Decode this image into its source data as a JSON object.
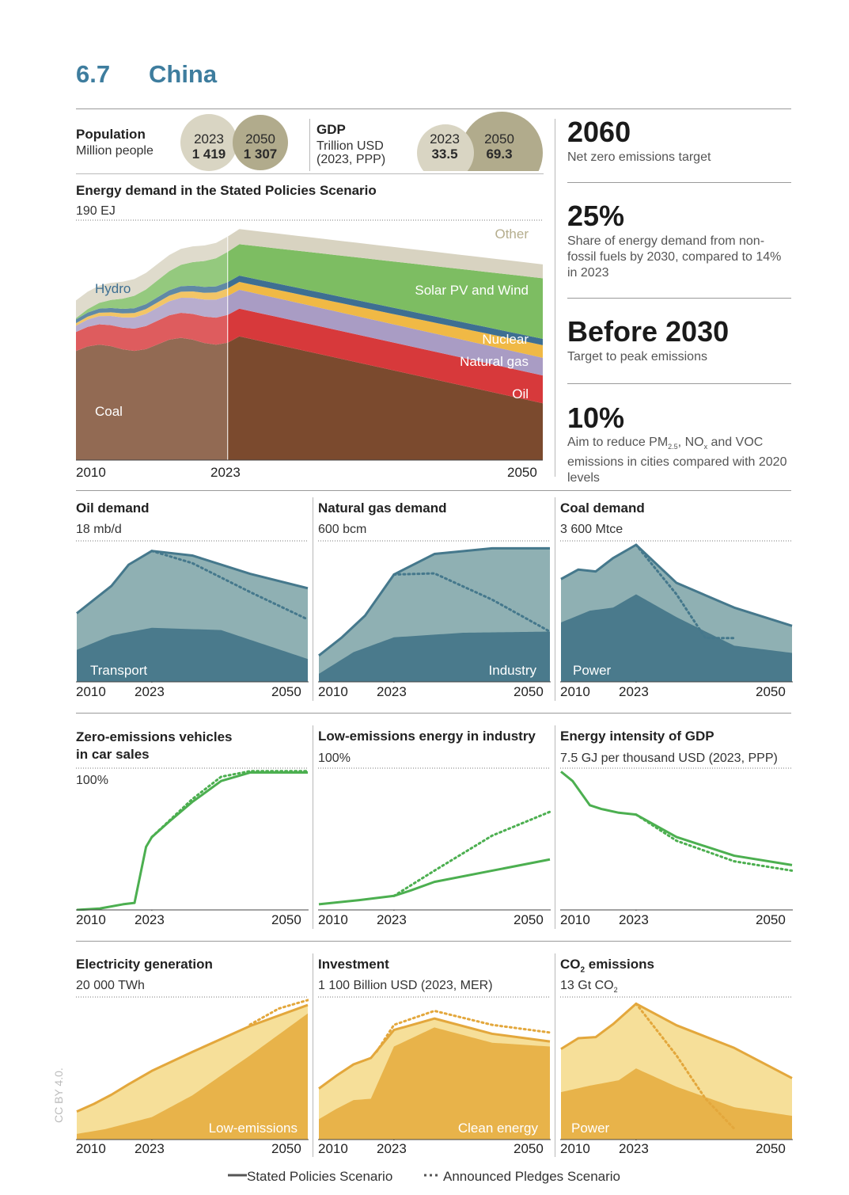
{
  "section": {
    "number": "6.7",
    "title": "China"
  },
  "population": {
    "label": "Population",
    "unit": "Million people",
    "y1": "2023",
    "v1": "1 419",
    "y2": "2050",
    "v2": "1 307"
  },
  "gdp": {
    "label": "GDP",
    "unit_line1": "Trillion USD",
    "unit_line2": "(2023, PPP)",
    "y1": "2023",
    "v1": "33.5",
    "y2": "2050",
    "v2": "69.3"
  },
  "kpis": [
    {
      "value": "2060",
      "text": "Net zero emissions target"
    },
    {
      "value": "25%",
      "text": "Share of energy demand from non-fossil fuels by 2030, compared to 14% in 2023"
    },
    {
      "value": "Before 2030",
      "text": "Target to peak emissions"
    },
    {
      "value": "10%",
      "text_a": "Aim to reduce PM",
      "sub_a": "2.5",
      "text_b": ", NO",
      "sub_b": "x",
      "text_c": " and VOC emissions in cities compared with 2020 levels"
    }
  ],
  "colors": {
    "coal": "#7b4a2e",
    "oil": "#d7393b",
    "gas": "#a99cc4",
    "nuclear": "#f0b945",
    "hydro": "#3e6f92",
    "renew": "#7dbd62",
    "other": "#d8d3c1",
    "teal_dark": "#4a7a8c",
    "teal_light": "#8fb0b3",
    "green": "#4caf50",
    "gold_dark": "#e8b34a",
    "gold_light": "#f6df99",
    "gold_line": "#e3a73c",
    "bubble_light": "#d9d5c3",
    "bubble_dark": "#b1ab8c"
  },
  "chart_data": [
    {
      "type": "area",
      "title": "Energy demand in the Stated Policies Scenario",
      "ylabel": "190 EJ",
      "x": [
        2010,
        2023,
        2050
      ],
      "x_ticks": [
        "2010",
        "2023",
        "2050"
      ],
      "ylim": [
        0,
        190
      ],
      "series": [
        {
          "name": "Coal",
          "values": [
            90,
            100,
            45
          ]
        },
        {
          "name": "Oil",
          "values": [
            15,
            22,
            22
          ]
        },
        {
          "name": "Natural gas",
          "values": [
            5,
            15,
            14
          ]
        },
        {
          "name": "Nuclear",
          "values": [
            2,
            6,
            10
          ]
        },
        {
          "name": "Hydro",
          "values": [
            3,
            5,
            5
          ]
        },
        {
          "name": "Solar PV and Wind",
          "values": [
            1,
            24,
            48
          ]
        },
        {
          "name": "Other",
          "values": [
            14,
            12,
            11
          ]
        }
      ]
    },
    {
      "type": "area",
      "title": "Oil demand",
      "ylabel": "18 mb/d",
      "ylim": [
        0,
        18
      ],
      "x_ticks": [
        "2010",
        "2023",
        "2050"
      ],
      "series": [
        {
          "name": "Transport",
          "x": [
            2010,
            2016,
            2023,
            2035,
            2050
          ],
          "values": [
            4.2,
            6.1,
            7.1,
            6.8,
            3.0
          ]
        },
        {
          "name": "Stated Policies Scenario",
          "x": [
            2010,
            2013,
            2016,
            2019,
            2023,
            2030,
            2040,
            2050
          ],
          "values": [
            9.0,
            10.8,
            12.6,
            15.4,
            17.2,
            16.6,
            14.2,
            12.3
          ]
        },
        {
          "name": "Announced Pledges Scenario",
          "x": [
            2023,
            2030,
            2040,
            2050
          ],
          "values": [
            17.2,
            15.6,
            11.8,
            8.2
          ]
        }
      ]
    },
    {
      "type": "area",
      "title": "Natural gas demand",
      "ylabel": "600 bcm",
      "ylim": [
        0,
        600
      ],
      "x_ticks": [
        "2010",
        "2023",
        "2050"
      ],
      "series": [
        {
          "name": "Industry",
          "x": [
            2010,
            2016,
            2023,
            2035,
            2050
          ],
          "values": [
            35,
            130,
            195,
            215,
            220
          ]
        },
        {
          "name": "Stated Policies Scenario",
          "x": [
            2010,
            2014,
            2018,
            2023,
            2030,
            2040,
            2050
          ],
          "values": [
            115,
            195,
            290,
            470,
            560,
            585,
            585
          ]
        },
        {
          "name": "Announced Pledges Scenario",
          "x": [
            2023,
            2030,
            2040,
            2050
          ],
          "values": [
            470,
            475,
            360,
            220
          ]
        }
      ]
    },
    {
      "type": "area",
      "title": "Coal demand",
      "ylabel": "3 600 Mtce",
      "ylim": [
        0,
        3600
      ],
      "x_ticks": [
        "2010",
        "2023",
        "2050"
      ],
      "series": [
        {
          "name": "Power",
          "x": [
            2010,
            2015,
            2019,
            2023,
            2030,
            2040,
            2050
          ],
          "values": [
            1560,
            1870,
            1950,
            2300,
            1700,
            950,
            760
          ]
        },
        {
          "name": "Stated Policies Scenario",
          "x": [
            2010,
            2013,
            2016,
            2019,
            2023,
            2030,
            2040,
            2050
          ],
          "values": [
            2700,
            2950,
            2900,
            3250,
            3600,
            2600,
            1950,
            1470
          ]
        },
        {
          "name": "Announced Pledges Scenario",
          "x": [
            2023,
            2030,
            2035,
            2040
          ],
          "values": [
            3600,
            2300,
            1150,
            1150
          ]
        }
      ]
    },
    {
      "type": "line",
      "title": "Zero-emissions vehicles in car sales",
      "ylabel": "100%",
      "ylim": [
        0,
        100
      ],
      "x_ticks": [
        "2010",
        "2023",
        "2050"
      ],
      "series": [
        {
          "name": "Stated Policies Scenario",
          "x": [
            2010,
            2014,
            2018,
            2020,
            2022,
            2023,
            2026,
            2030,
            2035,
            2040,
            2050
          ],
          "values": [
            0,
            1,
            4,
            5,
            45,
            52,
            63,
            77,
            92,
            98,
            98
          ]
        },
        {
          "name": "Announced Pledges Scenario",
          "x": [
            2023,
            2030,
            2035,
            2040,
            2050
          ],
          "values": [
            52,
            79,
            95,
            99,
            99
          ]
        }
      ]
    },
    {
      "type": "line",
      "title": "Low-emissions energy in industry",
      "ylabel": "100%",
      "ylim": [
        0,
        100
      ],
      "x_ticks": [
        "2010",
        "2023",
        "2050"
      ],
      "series": [
        {
          "name": "Stated Policies Scenario",
          "x": [
            2010,
            2017,
            2023,
            2026,
            2030,
            2040,
            2050
          ],
          "values": [
            4,
            7,
            10,
            14,
            20,
            28,
            36
          ]
        },
        {
          "name": "Announced Pledges Scenario",
          "x": [
            2023,
            2030,
            2040,
            2050
          ],
          "values": [
            10,
            28,
            53,
            70
          ]
        }
      ]
    },
    {
      "type": "line",
      "title": "Energy intensity of GDP",
      "ylabel": "7.5 GJ per thousand USD (2023, PPP)",
      "ylim": [
        0,
        7.5
      ],
      "x_ticks": [
        "2010",
        "2023",
        "2050"
      ],
      "series": [
        {
          "name": "Stated Policies Scenario",
          "x": [
            2010,
            2012,
            2015,
            2017,
            2020,
            2023,
            2030,
            2040,
            2050
          ],
          "values": [
            7.4,
            6.9,
            5.6,
            5.4,
            5.2,
            5.1,
            3.9,
            2.9,
            2.4
          ]
        },
        {
          "name": "Announced Pledges Scenario",
          "x": [
            2023,
            2030,
            2040,
            2050
          ],
          "values": [
            5.1,
            3.7,
            2.6,
            2.1
          ]
        }
      ]
    },
    {
      "type": "area",
      "title": "Electricity generation",
      "ylabel": "20 000 TWh",
      "ylim": [
        0,
        20000
      ],
      "x_ticks": [
        "2010",
        "2023",
        "2050"
      ],
      "series": [
        {
          "name": "Low-emissions",
          "x": [
            2010,
            2015,
            2023,
            2030,
            2040,
            2050
          ],
          "values": [
            800,
            1500,
            3200,
            6300,
            12000,
            18000
          ]
        },
        {
          "name": "Stated Policies Scenario",
          "x": [
            2010,
            2013,
            2016,
            2019,
            2023,
            2030,
            2040,
            2050
          ],
          "values": [
            4000,
            5100,
            6400,
            7900,
            9800,
            12500,
            16200,
            19200
          ]
        },
        {
          "name": "Announced Pledges Scenario",
          "x": [
            2040,
            2045,
            2050
          ],
          "values": [
            16400,
            18700,
            19900
          ]
        }
      ]
    },
    {
      "type": "area",
      "title": "Investment",
      "ylabel": "1 100 Billion USD (2023, MER)",
      "ylim": [
        0,
        1100
      ],
      "x_ticks": [
        "2010",
        "2023",
        "2050"
      ],
      "series": [
        {
          "name": "Clean energy",
          "x": [
            2010,
            2013,
            2016,
            2019,
            2023,
            2030,
            2040,
            2050
          ],
          "values": [
            160,
            240,
            310,
            320,
            730,
            880,
            760,
            730
          ]
        },
        {
          "name": "Stated Policies Scenario",
          "x": [
            2010,
            2013,
            2016,
            2019,
            2023,
            2030,
            2040,
            2050
          ],
          "values": [
            400,
            500,
            590,
            640,
            860,
            950,
            830,
            770
          ]
        },
        {
          "name": "Announced Pledges Scenario",
          "x": [
            2020,
            2023,
            2030,
            2040,
            2050
          ],
          "values": [
            690,
            900,
            1010,
            900,
            840
          ]
        }
      ]
    },
    {
      "type": "area",
      "title": "CO₂ emissions",
      "ylabel": "13 Gt CO₂",
      "ylim": [
        0,
        13
      ],
      "x_ticks": [
        "2010",
        "2023",
        "2050"
      ],
      "series": [
        {
          "name": "Power",
          "x": [
            2010,
            2015,
            2020,
            2023,
            2030,
            2040,
            2050
          ],
          "values": [
            4.4,
            5.0,
            5.5,
            6.6,
            4.9,
            3.0,
            2.2
          ]
        },
        {
          "name": "Stated Policies Scenario",
          "x": [
            2010,
            2013,
            2016,
            2019,
            2023,
            2030,
            2040,
            2050
          ],
          "values": [
            8.4,
            9.4,
            9.5,
            10.7,
            12.6,
            10.6,
            8.5,
            5.7
          ]
        },
        {
          "name": "Announced Pledges Scenario",
          "x": [
            2023,
            2030,
            2035,
            2040
          ],
          "values": [
            12.6,
            7.8,
            3.8,
            1.0
          ]
        }
      ]
    }
  ],
  "labels": {
    "energy": {
      "other": "Other",
      "hydro": "Hydro",
      "solar_wind": "Solar PV and Wind",
      "nuclear": "Nuclear",
      "gas": "Natural gas",
      "oil": "Oil",
      "coal": "Coal"
    },
    "oil": {
      "title": "Oil demand",
      "unit": "18 mb/d",
      "inner": "Transport"
    },
    "gas": {
      "title": "Natural gas demand",
      "unit": "600 bcm",
      "inner": "Industry"
    },
    "coal": {
      "title": "Coal demand",
      "unit": "3 600 Mtce",
      "inner": "Power"
    },
    "zev": {
      "title_line1": "Zero-emissions vehicles",
      "title_line2": "in car sales",
      "unit": "100%"
    },
    "lowind": {
      "title": "Low-emissions energy in industry",
      "unit": "100%"
    },
    "intensity": {
      "title": "Energy intensity of GDP",
      "unit": "7.5 GJ per thousand USD (2023, PPP)"
    },
    "elec": {
      "title": "Electricity generation",
      "unit": "20 000 TWh",
      "inner": "Low-emissions"
    },
    "invest": {
      "title": "Investment",
      "unit": "1 100 Billion USD (2023, MER)",
      "inner": "Clean energy"
    },
    "co2": {
      "title_a": "CO",
      "title_sub": "2",
      "title_b": " emissions",
      "unit_a": "13 Gt CO",
      "unit_sub": "2",
      "inner": "Power"
    }
  },
  "ticks": {
    "t2010": "2010",
    "t2023": "2023",
    "t2050": "2050"
  },
  "legend": {
    "stated": "Stated Policies Scenario",
    "announced": "Announced Pledges Scenario"
  },
  "license": "CC BY 4.0."
}
